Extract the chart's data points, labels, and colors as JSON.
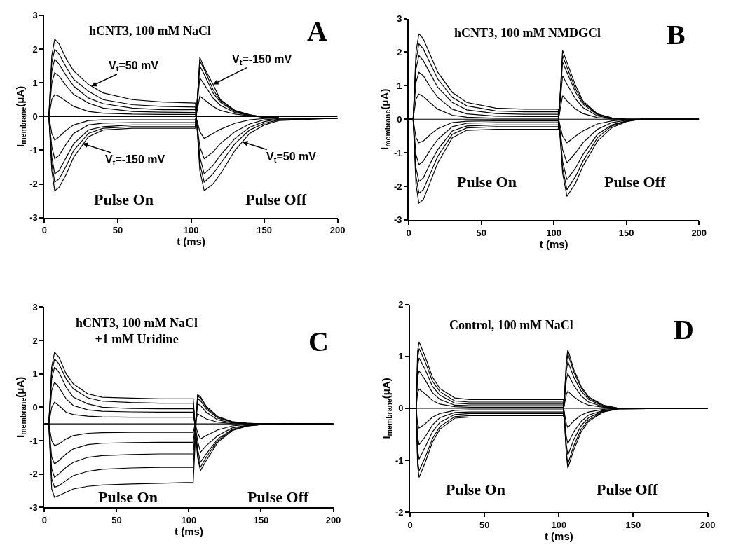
{
  "chart_data": [
    {
      "type": "line",
      "title": "hCNT3, 100 mM NaCl",
      "xlabel": "t (ms)",
      "ylabel": "I$_{membrane}$(μA)",
      "xlim": [
        0,
        200
      ],
      "xticks": [
        0,
        50,
        100,
        150,
        200
      ],
      "ylim": [
        -3,
        3
      ],
      "yticks": [
        -3,
        -2,
        -1,
        0,
        1,
        2,
        3
      ],
      "marker": "none",
      "line_style": "solid",
      "annotations": [
        "A",
        "Pulse On",
        "Pulse Off",
        {
          "text": "V$_{t}$=50 mV",
          "x": 32,
          "y": 0.9
        },
        {
          "text": "V$_{t}$=-150 mV",
          "x": 115,
          "y": 0.95
        },
        {
          "text": "V$_{t}$=-150 mV",
          "x": 26,
          "y": -0.8
        },
        {
          "text": "V$_{t}$=50 mV",
          "x": 135,
          "y": -0.75
        }
      ],
      "x": [
        0,
        3,
        5,
        7,
        10,
        15,
        20,
        30,
        40,
        60,
        80,
        103,
        106,
        109,
        115,
        120,
        130,
        140,
        150,
        160,
        200
      ],
      "series": [
        {
          "color": "#000000",
          "values": [
            0,
            0,
            1.8,
            2.3,
            2.15,
            1.7,
            1.35,
            0.95,
            0.7,
            0.5,
            0.43,
            0.4,
            -1.6,
            -2.2,
            -2.0,
            -1.7,
            -1.0,
            -0.5,
            -0.25,
            -0.12,
            -0.05
          ]
        },
        {
          "color": "#000000",
          "values": [
            0,
            0,
            1.6,
            2.0,
            1.85,
            1.45,
            1.1,
            0.75,
            0.5,
            0.35,
            0.3,
            0.28,
            -1.4,
            -1.95,
            -1.7,
            -1.4,
            -0.8,
            -0.4,
            -0.2,
            -0.1,
            -0.05
          ]
        },
        {
          "color": "#000000",
          "values": [
            0,
            0,
            1.35,
            1.7,
            1.55,
            1.2,
            0.9,
            0.55,
            0.38,
            0.25,
            0.2,
            0.2,
            -1.2,
            -1.7,
            -1.45,
            -1.15,
            -0.65,
            -0.32,
            -0.15,
            -0.08,
            -0.05
          ]
        },
        {
          "color": "#000000",
          "values": [
            0,
            0,
            1.0,
            1.3,
            1.2,
            0.9,
            0.65,
            0.4,
            0.25,
            0.15,
            0.13,
            0.12,
            -0.9,
            -1.25,
            -1.05,
            -0.8,
            -0.45,
            -0.22,
            -0.1,
            -0.06,
            -0.05
          ]
        },
        {
          "color": "#000000",
          "values": [
            0,
            0,
            0.5,
            0.65,
            0.6,
            0.45,
            0.3,
            0.15,
            0.1,
            0.07,
            0.06,
            0.06,
            -0.45,
            -0.65,
            -0.5,
            -0.38,
            -0.2,
            -0.1,
            -0.06,
            -0.05,
            -0.05
          ]
        },
        {
          "color": "#000000",
          "values": [
            0,
            0,
            0,
            0,
            0,
            0,
            0,
            0,
            0,
            0,
            0,
            0,
            0,
            0,
            0,
            0,
            0,
            0,
            0,
            0,
            0
          ]
        },
        {
          "color": "#000000",
          "values": [
            0,
            0,
            -0.5,
            -0.7,
            -0.6,
            -0.4,
            -0.25,
            -0.12,
            -0.1,
            -0.1,
            -0.1,
            -0.1,
            0.6,
            0.5,
            0.3,
            0.18,
            0.07,
            0.02,
            -0.02,
            -0.04,
            -0.05
          ]
        },
        {
          "color": "#000000",
          "values": [
            0,
            0,
            -0.9,
            -1.25,
            -1.15,
            -0.8,
            -0.5,
            -0.25,
            -0.2,
            -0.18,
            -0.18,
            -0.18,
            1.15,
            0.95,
            0.55,
            0.33,
            0.12,
            0.03,
            -0.02,
            -0.04,
            -0.05
          ]
        },
        {
          "color": "#000000",
          "values": [
            0,
            0,
            -1.2,
            -1.7,
            -1.6,
            -1.2,
            -0.8,
            -0.4,
            -0.3,
            -0.25,
            -0.25,
            -0.25,
            1.5,
            1.25,
            0.7,
            0.42,
            0.15,
            0.04,
            -0.02,
            -0.04,
            -0.05
          ]
        },
        {
          "color": "#000000",
          "values": [
            0,
            0,
            -1.4,
            -1.95,
            -1.85,
            -1.45,
            -1.0,
            -0.5,
            -0.35,
            -0.3,
            -0.3,
            -0.3,
            1.65,
            1.4,
            0.8,
            0.47,
            0.17,
            0.05,
            -0.02,
            -0.04,
            -0.05
          ]
        },
        {
          "color": "#000000",
          "values": [
            0,
            0,
            -1.6,
            -2.2,
            -2.1,
            -1.7,
            -1.2,
            -0.6,
            -0.4,
            -0.35,
            -0.35,
            -0.35,
            1.75,
            1.45,
            0.95,
            0.5,
            0.18,
            0.05,
            -0.02,
            -0.04,
            -0.05
          ]
        }
      ]
    },
    {
      "type": "line",
      "title": "hCNT3, 100 mM NMDGCl",
      "xlabel": "t (ms)",
      "ylabel": "I$_{membrane}$(μA)",
      "xlim": [
        0,
        200
      ],
      "xticks": [
        0,
        50,
        100,
        150,
        200
      ],
      "ylim": [
        -3,
        3
      ],
      "yticks": [
        -3,
        -2,
        -1,
        0,
        1,
        2,
        3
      ],
      "marker": "none",
      "line_style": "solid",
      "annotations": [
        "B",
        "Pulse On",
        "Pulse Off"
      ],
      "x": [
        0,
        3,
        5,
        7,
        10,
        15,
        20,
        30,
        40,
        60,
        80,
        103,
        106,
        109,
        115,
        120,
        130,
        140,
        150,
        160,
        200
      ],
      "series": [
        {
          "color": "#000000",
          "values": [
            0,
            0,
            2.0,
            2.55,
            2.4,
            1.9,
            1.4,
            0.8,
            0.5,
            0.33,
            0.3,
            0.3,
            -1.6,
            -2.3,
            -1.9,
            -1.4,
            -0.65,
            -0.25,
            -0.07,
            0,
            0
          ]
        },
        {
          "color": "#000000",
          "values": [
            0,
            0,
            1.75,
            2.25,
            2.1,
            1.65,
            1.2,
            0.65,
            0.4,
            0.25,
            0.22,
            0.22,
            -1.45,
            -2.1,
            -1.7,
            -1.25,
            -0.55,
            -0.2,
            -0.06,
            0,
            0
          ]
        },
        {
          "color": "#000000",
          "values": [
            0,
            0,
            1.5,
            1.9,
            1.75,
            1.35,
            0.95,
            0.5,
            0.28,
            0.17,
            0.15,
            0.15,
            -1.25,
            -1.8,
            -1.45,
            -1.05,
            -0.45,
            -0.17,
            -0.05,
            0,
            0
          ]
        },
        {
          "color": "#000000",
          "values": [
            0,
            0,
            1.1,
            1.4,
            1.3,
            0.95,
            0.65,
            0.3,
            0.16,
            0.09,
            0.08,
            0.08,
            -0.9,
            -1.3,
            -1.0,
            -0.7,
            -0.3,
            -0.1,
            -0.03,
            0,
            0
          ]
        },
        {
          "color": "#000000",
          "values": [
            0,
            0,
            0.6,
            0.75,
            0.68,
            0.48,
            0.3,
            0.12,
            0.06,
            0.03,
            0.03,
            0.03,
            -0.5,
            -0.7,
            -0.5,
            -0.35,
            -0.14,
            -0.05,
            -0.01,
            0,
            0
          ]
        },
        {
          "color": "#000000",
          "values": [
            0,
            0,
            0,
            0,
            0,
            0,
            0,
            0,
            0,
            0,
            0,
            0,
            0,
            0,
            0,
            0,
            0,
            0,
            0,
            0,
            0
          ]
        },
        {
          "color": "#000000",
          "values": [
            0,
            0,
            -0.55,
            -0.7,
            -0.65,
            -0.45,
            -0.28,
            -0.1,
            -0.06,
            -0.05,
            -0.05,
            -0.05,
            0.7,
            0.55,
            0.3,
            0.17,
            0.05,
            0.01,
            0,
            0,
            0
          ]
        },
        {
          "color": "#000000",
          "values": [
            0,
            0,
            -1.05,
            -1.35,
            -1.25,
            -0.9,
            -0.6,
            -0.22,
            -0.12,
            -0.1,
            -0.1,
            -0.1,
            1.3,
            1.05,
            0.6,
            0.35,
            0.1,
            0.02,
            0,
            0,
            0
          ]
        },
        {
          "color": "#000000",
          "values": [
            0,
            0,
            -1.45,
            -1.85,
            -1.75,
            -1.3,
            -0.9,
            -0.35,
            -0.2,
            -0.17,
            -0.17,
            -0.17,
            1.7,
            1.4,
            0.8,
            0.45,
            0.13,
            0.03,
            0,
            0,
            0
          ]
        },
        {
          "color": "#000000",
          "values": [
            0,
            0,
            -1.7,
            -2.2,
            -2.1,
            -1.6,
            -1.1,
            -0.45,
            -0.26,
            -0.22,
            -0.22,
            -0.22,
            1.9,
            1.55,
            0.9,
            0.5,
            0.15,
            0.04,
            0,
            0,
            0
          ]
        },
        {
          "color": "#000000",
          "values": [
            0,
            0,
            -1.95,
            -2.5,
            -2.4,
            -1.85,
            -1.3,
            -0.55,
            -0.33,
            -0.3,
            -0.3,
            -0.3,
            2.05,
            1.7,
            1.0,
            0.55,
            0.16,
            0.04,
            0,
            0,
            0
          ]
        }
      ]
    },
    {
      "type": "line",
      "title": "hCNT3, 100 mM NaCl\n+1 mM Uridine",
      "xlabel": "t (ms)",
      "ylabel": "I$_{membrane}$(μA)",
      "xlim": [
        0,
        200
      ],
      "xticks": [
        0,
        50,
        100,
        150,
        200
      ],
      "ylim": [
        -3,
        3
      ],
      "yticks": [
        -3,
        -2,
        -1,
        0,
        1,
        2,
        3
      ],
      "marker": "none",
      "line_style": "solid",
      "annotations": [
        "C",
        "Pulse On",
        "Pulse Off"
      ],
      "x": [
        0,
        3,
        5,
        7,
        10,
        15,
        20,
        30,
        40,
        60,
        80,
        103,
        106,
        108,
        112,
        120,
        130,
        140,
        150,
        200
      ],
      "series": [
        {
          "color": "#000000",
          "values": [
            -0.5,
            -0.5,
            1.2,
            1.65,
            1.5,
            1.0,
            0.7,
            0.4,
            0.3,
            0.27,
            0.25,
            0.25,
            -1.5,
            -1.9,
            -1.6,
            -1.05,
            -0.7,
            -0.57,
            -0.52,
            -0.5
          ]
        },
        {
          "color": "#000000",
          "values": [
            -0.5,
            -0.5,
            1.05,
            1.45,
            1.3,
            0.85,
            0.55,
            0.28,
            0.18,
            0.14,
            0.12,
            0.12,
            -1.4,
            -1.8,
            -1.5,
            -1.0,
            -0.68,
            -0.56,
            -0.52,
            -0.5
          ]
        },
        {
          "color": "#000000",
          "values": [
            -0.5,
            -0.5,
            0.85,
            1.2,
            1.05,
            0.6,
            0.3,
            0.1,
            0.0,
            -0.04,
            -0.05,
            -0.05,
            -1.25,
            -1.65,
            -1.4,
            -0.95,
            -0.66,
            -0.55,
            -0.52,
            -0.5
          ]
        },
        {
          "color": "#000000",
          "values": [
            -0.5,
            -0.5,
            0.5,
            0.75,
            0.6,
            0.25,
            0.05,
            -0.08,
            -0.12,
            -0.14,
            -0.15,
            -0.15,
            -1.0,
            -1.35,
            -1.15,
            -0.85,
            -0.62,
            -0.54,
            -0.51,
            -0.5
          ]
        },
        {
          "color": "#000000",
          "values": [
            -0.5,
            -0.5,
            0.0,
            0.15,
            0.05,
            -0.15,
            -0.22,
            -0.27,
            -0.29,
            -0.3,
            -0.3,
            -0.3,
            -0.75,
            -0.95,
            -0.85,
            -0.68,
            -0.56,
            -0.52,
            -0.51,
            -0.5
          ]
        },
        {
          "color": "#000000",
          "values": [
            -0.5,
            -0.5,
            -0.5,
            -0.5,
            -0.5,
            -0.5,
            -0.5,
            -0.5,
            -0.5,
            -0.5,
            -0.5,
            -0.5,
            -0.5,
            -0.5,
            -0.5,
            -0.5,
            -0.5,
            -0.5,
            -0.5,
            -0.5
          ]
        },
        {
          "color": "#000000",
          "values": [
            -0.5,
            -0.5,
            -1.0,
            -1.15,
            -1.1,
            -0.95,
            -0.85,
            -0.78,
            -0.76,
            -0.75,
            -0.75,
            -0.75,
            -0.2,
            -0.25,
            -0.35,
            -0.45,
            -0.49,
            -0.5,
            -0.5,
            -0.5
          ]
        },
        {
          "color": "#000000",
          "values": [
            -0.5,
            -0.5,
            -1.5,
            -1.7,
            -1.6,
            -1.4,
            -1.25,
            -1.12,
            -1.08,
            -1.06,
            -1.05,
            -1.05,
            0.1,
            0.05,
            -0.15,
            -0.38,
            -0.47,
            -0.49,
            -0.5,
            -0.5
          ]
        },
        {
          "color": "#000000",
          "values": [
            -0.5,
            -0.5,
            -1.85,
            -2.1,
            -2.0,
            -1.8,
            -1.65,
            -1.5,
            -1.45,
            -1.42,
            -1.4,
            -1.4,
            0.25,
            0.2,
            -0.05,
            -0.33,
            -0.45,
            -0.49,
            -0.5,
            -0.5
          ]
        },
        {
          "color": "#000000",
          "values": [
            -0.5,
            -0.5,
            -2.15,
            -2.4,
            -2.35,
            -2.2,
            -2.05,
            -1.92,
            -1.86,
            -1.82,
            -1.8,
            -1.8,
            0.33,
            0.28,
            0.0,
            -0.3,
            -0.44,
            -0.48,
            -0.5,
            -0.5
          ]
        },
        {
          "color": "#000000",
          "values": [
            -0.5,
            -0.5,
            -2.45,
            -2.7,
            -2.65,
            -2.55,
            -2.45,
            -2.37,
            -2.33,
            -2.3,
            -2.28,
            -2.25,
            0.38,
            0.32,
            0.03,
            -0.28,
            -0.43,
            -0.48,
            -0.5,
            -0.5
          ]
        }
      ]
    },
    {
      "type": "line",
      "title": "Control, 100 mM NaCl",
      "xlabel": "t (ms)",
      "ylabel": "I$_{membrane}$(μA)",
      "xlim": [
        0,
        200
      ],
      "xticks": [
        0,
        50,
        100,
        150,
        200
      ],
      "ylim": [
        -2,
        2
      ],
      "yticks": [
        -2,
        -1,
        0,
        1,
        2
      ],
      "marker": "none",
      "line_style": "solid",
      "annotations": [
        "D",
        "Pulse On",
        "Pulse Off"
      ],
      "x": [
        0,
        4,
        5,
        6,
        10,
        15,
        20,
        30,
        40,
        60,
        80,
        103,
        105,
        106,
        110,
        115,
        120,
        130,
        140,
        200
      ],
      "series": [
        {
          "color": "#000000",
          "values": [
            0,
            0,
            1.1,
            1.28,
            1.0,
            0.6,
            0.38,
            0.2,
            0.17,
            0.17,
            0.17,
            0.17,
            -0.9,
            -1.15,
            -0.8,
            -0.45,
            -0.25,
            -0.07,
            -0.01,
            0
          ]
        },
        {
          "color": "#000000",
          "values": [
            0,
            0,
            0.95,
            1.15,
            0.9,
            0.52,
            0.32,
            0.14,
            0.12,
            0.12,
            0.12,
            0.12,
            -0.85,
            -1.07,
            -0.72,
            -0.4,
            -0.22,
            -0.06,
            -0.01,
            0
          ]
        },
        {
          "color": "#000000",
          "values": [
            0,
            0,
            0.8,
            0.97,
            0.75,
            0.42,
            0.25,
            0.1,
            0.08,
            0.08,
            0.08,
            0.08,
            -0.7,
            -0.9,
            -0.6,
            -0.33,
            -0.18,
            -0.05,
            -0.01,
            0
          ]
        },
        {
          "color": "#000000",
          "values": [
            0,
            0,
            0.6,
            0.72,
            0.55,
            0.3,
            0.17,
            0.06,
            0.05,
            0.05,
            0.05,
            0.05,
            -0.55,
            -0.68,
            -0.45,
            -0.25,
            -0.13,
            -0.04,
            -0.01,
            0
          ]
        },
        {
          "color": "#000000",
          "values": [
            0,
            0,
            0.3,
            0.37,
            0.28,
            0.15,
            0.08,
            0.03,
            0.02,
            0.02,
            0.02,
            0.02,
            -0.3,
            -0.37,
            -0.24,
            -0.13,
            -0.07,
            -0.02,
            0,
            0
          ]
        },
        {
          "color": "#000000",
          "values": [
            0,
            0,
            0,
            0,
            0,
            0,
            0,
            0,
            0,
            0,
            0,
            0,
            0,
            0,
            0,
            0,
            0,
            0,
            0,
            0
          ]
        },
        {
          "color": "#000000",
          "values": [
            0,
            0,
            -0.3,
            -0.38,
            -0.3,
            -0.17,
            -0.1,
            -0.04,
            -0.03,
            -0.03,
            -0.03,
            -0.03,
            0.27,
            0.33,
            0.22,
            0.12,
            0.06,
            0.02,
            0,
            0
          ]
        },
        {
          "color": "#000000",
          "values": [
            0,
            0,
            -0.55,
            -0.7,
            -0.55,
            -0.32,
            -0.18,
            -0.08,
            -0.07,
            -0.07,
            -0.07,
            -0.07,
            0.55,
            0.67,
            0.44,
            0.24,
            0.12,
            0.03,
            0,
            0
          ]
        },
        {
          "color": "#000000",
          "values": [
            0,
            0,
            -0.8,
            -0.98,
            -0.75,
            -0.45,
            -0.27,
            -0.12,
            -0.1,
            -0.1,
            -0.1,
            -0.1,
            0.72,
            0.9,
            0.6,
            0.33,
            0.17,
            0.04,
            0,
            0
          ]
        },
        {
          "color": "#000000",
          "values": [
            0,
            0,
            -1.0,
            -1.2,
            -0.95,
            -0.58,
            -0.35,
            -0.16,
            -0.14,
            -0.14,
            -0.14,
            -0.14,
            0.85,
            1.05,
            0.7,
            0.39,
            0.2,
            0.05,
            0,
            0
          ]
        },
        {
          "color": "#000000",
          "values": [
            0,
            0,
            -1.1,
            -1.33,
            -1.05,
            -0.65,
            -0.4,
            -0.19,
            -0.17,
            -0.17,
            -0.17,
            -0.17,
            0.92,
            1.13,
            0.75,
            0.42,
            0.22,
            0.06,
            0,
            0
          ]
        }
      ]
    }
  ]
}
